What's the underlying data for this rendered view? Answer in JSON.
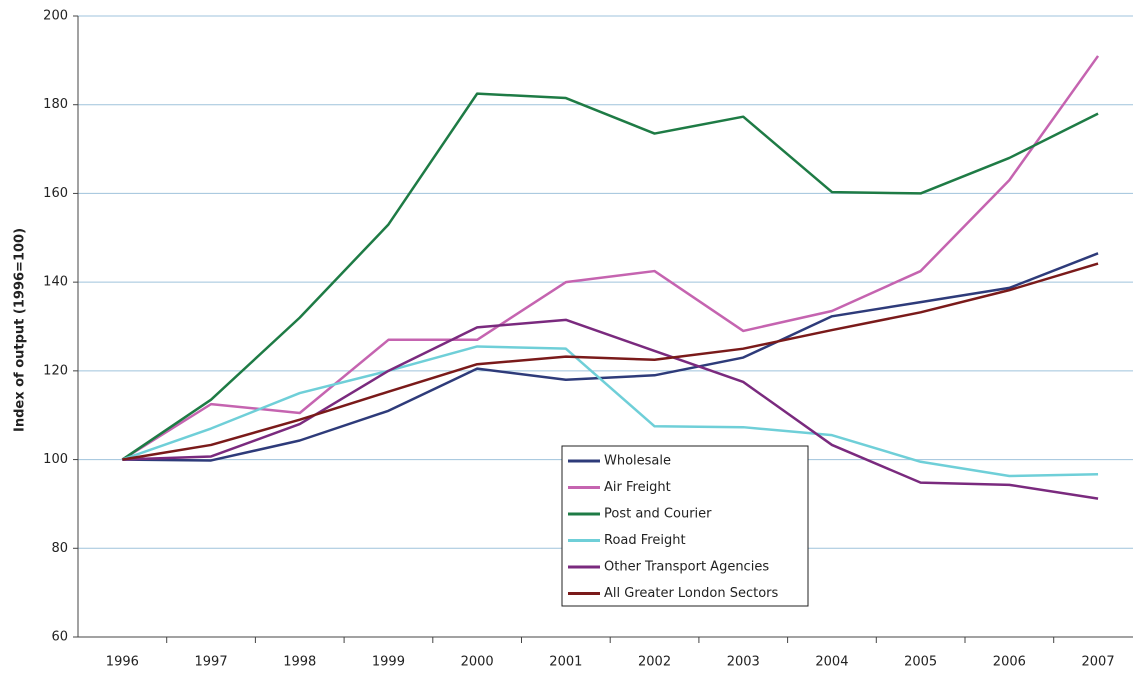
{
  "chart_data": {
    "type": "line",
    "y_label": "Index of output (1996=100)",
    "categories": [
      "1996",
      "1997",
      "1998",
      "1999",
      "2000",
      "2001",
      "2002",
      "2003",
      "2004",
      "2005",
      "2006",
      "2007"
    ],
    "ylim": [
      60,
      200
    ],
    "yticks": [
      60,
      80,
      100,
      120,
      140,
      160,
      180,
      200
    ],
    "grid": true,
    "legend": "lower center",
    "series": [
      {
        "name": "Wholesale",
        "color": "#2e3b7a",
        "values": [
          100,
          99.8,
          104.3,
          111,
          120.5,
          118,
          119,
          123,
          132.3,
          135.5,
          138.7,
          146.5
        ]
      },
      {
        "name": "Air Freight",
        "color": "#c564b0",
        "values": [
          100,
          112.5,
          110.5,
          127,
          127,
          140,
          142.5,
          129,
          133.5,
          142.5,
          163,
          191
        ]
      },
      {
        "name": "Post and Courier",
        "color": "#1e7b45",
        "values": [
          100,
          113.5,
          132,
          153,
          182.5,
          181.5,
          173.5,
          177.3,
          160.3,
          160,
          168,
          178
        ]
      },
      {
        "name": "Road Freight",
        "color": "#6fcfd8",
        "values": [
          100,
          107,
          115,
          120,
          125.5,
          125,
          107.5,
          107.3,
          105.5,
          99.5,
          96.3,
          96.7
        ]
      },
      {
        "name": "Other Transport Agencies",
        "color": "#7a2a7e",
        "values": [
          100,
          100.7,
          108,
          120,
          129.8,
          131.5,
          124.5,
          117.5,
          103.3,
          94.8,
          94.3,
          91.2
        ]
      },
      {
        "name": "All Greater London Sectors",
        "color": "#7a1a1a",
        "values": [
          100,
          103.3,
          109,
          115.3,
          121.5,
          123.2,
          122.5,
          125,
          129.2,
          133.2,
          138.2,
          144.2
        ]
      }
    ]
  }
}
